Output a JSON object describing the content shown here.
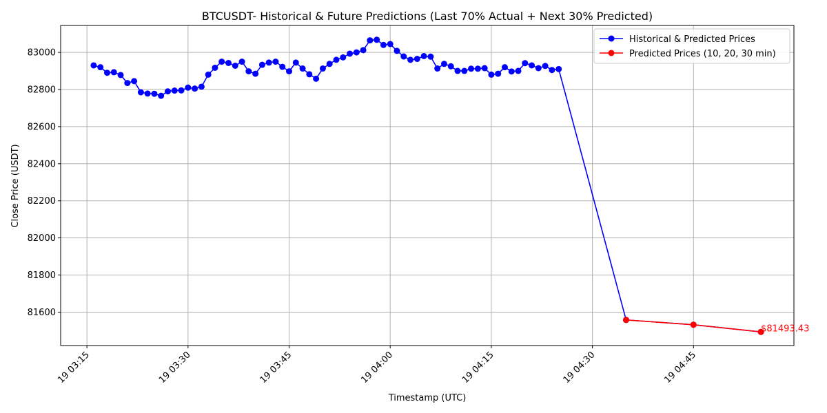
{
  "chart_data": {
    "type": "line",
    "title": "BTCUSDT- Historical & Future Predictions (Last 70% Actual + Next 30% Predicted)",
    "xlabel": "Timestamp (UTC)",
    "ylabel": "Close Price (USDT)",
    "x_tick_labels": [
      "19 03:15",
      "19 03:30",
      "19 03:45",
      "19 04:00",
      "19 04:15",
      "19 04:30",
      "19 04:45"
    ],
    "x_tick_minutes": [
      195,
      210,
      225,
      240,
      255,
      270,
      285
    ],
    "y_ticks": [
      81600,
      81800,
      82000,
      82200,
      82400,
      82600,
      82800,
      83000
    ],
    "x_range_minutes": [
      191.1,
      299.9
    ],
    "ylim": [
      81420,
      83145
    ],
    "grid": true,
    "legend_position": "top-right",
    "colors": {
      "historical": "#0000ff",
      "predicted": "#ff0000",
      "grid": "#b0b0b0"
    },
    "series": [
      {
        "name": "Historical & Predicted Prices",
        "color": "#0000ff",
        "x_minutes": [
          196,
          197,
          198,
          199,
          200,
          201,
          202,
          203,
          204,
          205,
          206,
          207,
          208,
          209,
          210,
          211,
          212,
          213,
          214,
          215,
          216,
          217,
          218,
          219,
          220,
          221,
          222,
          223,
          224,
          225,
          226,
          227,
          228,
          229,
          230,
          231,
          232,
          233,
          234,
          235,
          236,
          237,
          238,
          239,
          240,
          241,
          242,
          243,
          244,
          245,
          246,
          247,
          248,
          249,
          250,
          251,
          252,
          253,
          254,
          255,
          256,
          257,
          258,
          259,
          260,
          261,
          262,
          263,
          264,
          265,
          275,
          285,
          295
        ],
        "values": [
          82930,
          82920,
          82890,
          82893,
          82878,
          82835,
          82845,
          82785,
          82778,
          82777,
          82766,
          82790,
          82794,
          82795,
          82810,
          82805,
          82815,
          82880,
          82917,
          82950,
          82943,
          82928,
          82950,
          82898,
          82885,
          82933,
          82945,
          82950,
          82922,
          82898,
          82945,
          82913,
          82882,
          82858,
          82913,
          82938,
          82960,
          82973,
          82993,
          83000,
          83012,
          83065,
          83068,
          83040,
          83045,
          83008,
          82978,
          82960,
          82965,
          82980,
          82977,
          82913,
          82938,
          82925,
          82900,
          82900,
          82912,
          82912,
          82915,
          82880,
          82885,
          82920,
          82897,
          82900,
          82942,
          82930,
          82915,
          82927,
          82905,
          82910,
          81558,
          81532,
          81493.43
        ]
      },
      {
        "name": "Predicted Prices (10, 20, 30 min)",
        "color": "#ff0000",
        "x_minutes": [
          275,
          285,
          295
        ],
        "values": [
          81558,
          81532,
          81493.43
        ]
      }
    ],
    "annotation": {
      "text": "$81493.43",
      "x_minute": 295,
      "value": 81493.43,
      "color": "#ff0000"
    }
  }
}
